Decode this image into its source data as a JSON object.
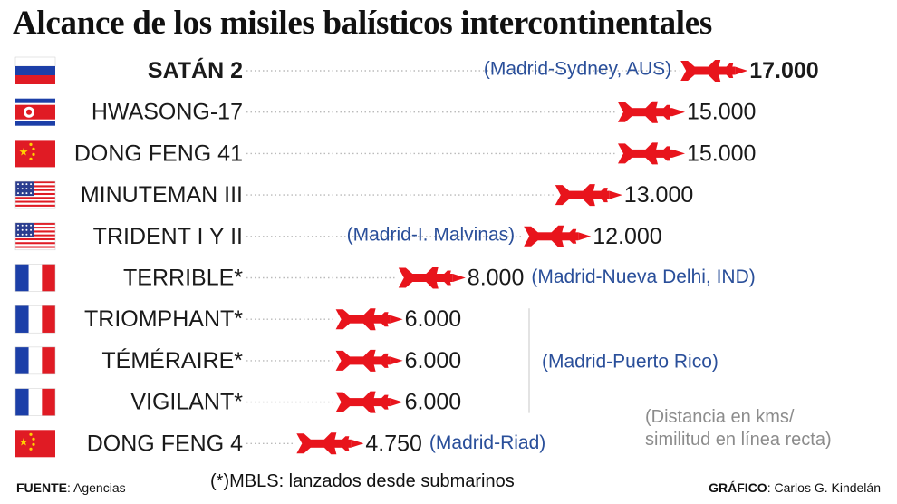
{
  "title": "Alcance de los misiles balísticos intercontinentales",
  "chart_data": {
    "type": "bar",
    "title": "Alcance de los misiles balísticos intercontinentales",
    "categories": [
      "SATÁN 2",
      "HWASONG-17",
      "DONG FENG 41",
      "MINUTEMAN III",
      "TRIDENT I Y II",
      "TERRIBLE*",
      "TRIOMPHANT*",
      "TÉMÉRAIRE*",
      "VIGILANT*",
      "DONG FENG 4"
    ],
    "values": [
      17000,
      15000,
      15000,
      13000,
      12000,
      8000,
      6000,
      6000,
      6000,
      4750
    ],
    "value_labels": [
      "17.000",
      "15.000",
      "15.000",
      "13.000",
      "12.000",
      "8.000",
      "6.000",
      "6.000",
      "6.000",
      "4.750"
    ],
    "countries": [
      "russia",
      "north-korea",
      "china",
      "usa",
      "usa",
      "france",
      "france",
      "france",
      "france",
      "china"
    ],
    "highlight_index": 0,
    "references": [
      {
        "row": 0,
        "text": "(Madrid-Sydney, AUS)",
        "side": "left"
      },
      {
        "row": 4,
        "text": "(Madrid-I. Malvinas)",
        "side": "left"
      },
      {
        "row": 5,
        "text": "(Madrid-Nueva Delhi, IND)",
        "side": "right"
      },
      {
        "rows": [
          6,
          8
        ],
        "text": "(Madrid-Puerto Rico)",
        "side": "right-bracket"
      },
      {
        "row": 9,
        "text": "(Madrid-Riad)",
        "side": "right"
      }
    ]
  },
  "colors": {
    "missile": "#e8141c",
    "route_text": "#2a4f9a",
    "note_text": "#8c8c8c",
    "dotted_line": "#bbbbbb"
  },
  "note": {
    "line1": "(Distancia en kms/",
    "line2": "similitud en línea recta)"
  },
  "footer": {
    "source_label": "FUENTE",
    "source_value": ": Agencias",
    "mbls_note": "(*)MBLS: lanzados desde submarinos",
    "graphic_label": "GRÁFICO",
    "graphic_value": ": Carlos G. Kindelán"
  }
}
